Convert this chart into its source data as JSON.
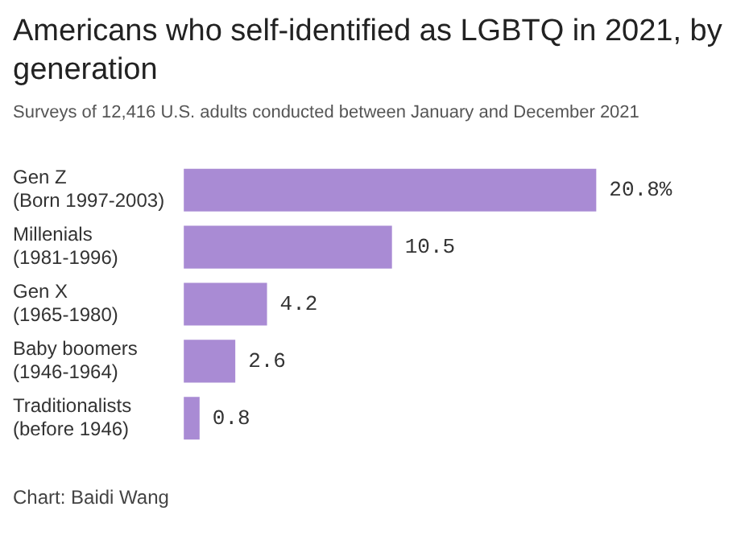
{
  "chart_data": {
    "type": "bar",
    "orientation": "horizontal",
    "title": "Americans who self-identified as LGBTQ in 2021, by generation",
    "subtitle": "Surveys of 12,416 U.S. adults conducted between January and December 2021",
    "categories": [
      "Gen Z\n(Born 1997-2003)",
      "Millenials\n(1981-1996)",
      "Gen X\n(1965-1980)",
      "Baby boomers\n(1946-1964)",
      "Traditionalists\n(before 1946)"
    ],
    "values": [
      20.8,
      10.5,
      4.2,
      2.6,
      0.8
    ],
    "value_labels": [
      "20.8%",
      "10.5",
      "4.2",
      "2.6",
      "0.8"
    ],
    "color": "#a98bd4",
    "grid": false,
    "legend": false,
    "annotations": [
      "Chart: Baidi Wang"
    ]
  }
}
